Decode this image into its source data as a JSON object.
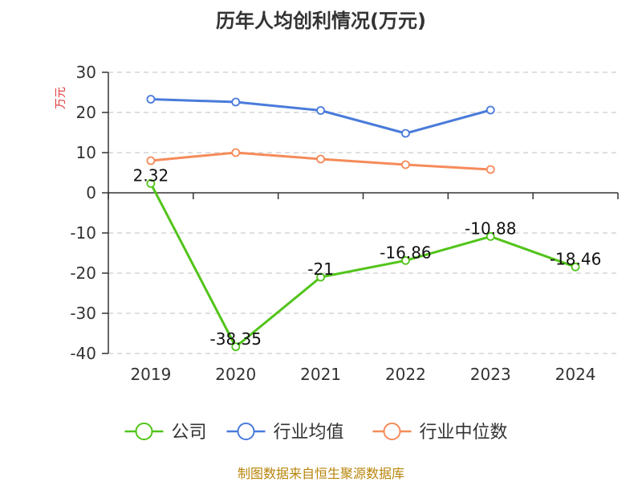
{
  "chart_data": {
    "type": "line",
    "title": "历年人均创利情况(万元)",
    "ylabel": "万元",
    "xlabel": "",
    "categories": [
      "2019",
      "2020",
      "2021",
      "2022",
      "2023",
      "2024"
    ],
    "ylim": [
      -40,
      30
    ],
    "yticks": [
      30,
      20,
      10,
      0,
      -10,
      -20,
      -30,
      -40
    ],
    "grid": true,
    "legend_position": "bottom",
    "series": [
      {
        "name": "公司",
        "color": "#52c41a",
        "values": [
          2.32,
          -38.35,
          -21,
          -16.86,
          -10.88,
          -18.46
        ],
        "labels": [
          "2.32",
          "-38.35",
          "-21",
          "-16.86",
          "-10.88",
          "-18.46"
        ]
      },
      {
        "name": "行业均值",
        "color": "#4a7bdb",
        "values": [
          23.3,
          22.6,
          20.5,
          14.8,
          20.6,
          null
        ]
      },
      {
        "name": "行业中位数",
        "color": "#f58b5a",
        "values": [
          8.0,
          10.0,
          8.4,
          7.0,
          5.8,
          null
        ]
      }
    ]
  },
  "source": "制图数据来自恒生聚源数据库"
}
